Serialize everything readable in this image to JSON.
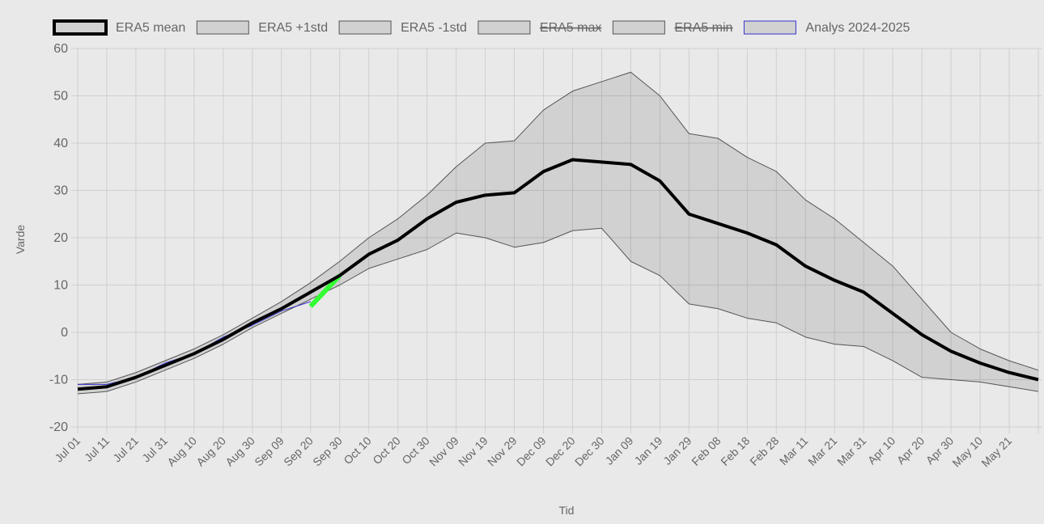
{
  "chart_data": {
    "type": "line",
    "x_label": "Tid",
    "y_label": "Varde",
    "categories": [
      "Jul 01",
      "Jul 11",
      "Jul 21",
      "Jul 31",
      "Aug 10",
      "Aug 20",
      "Aug 30",
      "Sep 09",
      "Sep 20",
      "Sep 30",
      "Oct 10",
      "Oct 20",
      "Oct 30",
      "Nov 09",
      "Nov 19",
      "Nov 29",
      "Dec 09",
      "Dec 20",
      "Dec 30",
      "Jan 09",
      "Jan 19",
      "Jan 29",
      "Feb 08",
      "Feb 18",
      "Feb 28",
      "Mar 11",
      "Mar 21",
      "Mar 31",
      "Apr 10",
      "Apr 20",
      "Apr 30",
      "May 10",
      "May 21",
      null
    ],
    "ylim": [
      -20,
      60
    ],
    "yticks": [
      -20,
      -10,
      0,
      10,
      20,
      30,
      40,
      50,
      60
    ],
    "grid": true,
    "legend": "top",
    "series": [
      {
        "name": "ERA5 mean",
        "color": "#000000",
        "width": 4,
        "values": [
          -12,
          -11.5,
          -9.5,
          -7,
          -4.5,
          -1.5,
          2,
          5,
          8.5,
          12,
          16.5,
          19.5,
          24,
          27.5,
          29,
          29.5,
          34,
          36.5,
          36,
          35.5,
          32,
          25,
          23,
          21,
          18.5,
          14,
          11,
          8.5,
          4,
          -0.5,
          -4,
          -6.5,
          -8.5,
          -10
        ]
      },
      {
        "name": "ERA5 +1std",
        "color": "#555555",
        "width": 1,
        "fill_to": 2,
        "values": [
          -11,
          -10.5,
          -8.5,
          -6,
          -3.5,
          -0.5,
          3,
          6.5,
          10.5,
          15,
          20,
          24,
          29,
          35,
          40,
          40.5,
          47,
          51,
          53,
          55,
          50,
          42,
          41,
          37,
          34,
          28,
          24,
          19,
          14,
          7,
          0,
          -3.5,
          -6,
          -8
        ]
      },
      {
        "name": "ERA5 -1std",
        "color": "#555555",
        "width": 1,
        "values": [
          -13,
          -12.5,
          -10.5,
          -8,
          -5.5,
          -2.5,
          1,
          4,
          7,
          10,
          13.5,
          15.5,
          17.5,
          21,
          20,
          18,
          19,
          21.5,
          22,
          15,
          12,
          6,
          5,
          3,
          2,
          -1,
          -2.5,
          -3,
          -6,
          -9.5,
          -10,
          -10.5,
          -11.5,
          -12.5
        ]
      },
      {
        "name": "ERA5 max",
        "color": "#555555",
        "hidden": true
      },
      {
        "name": "ERA5 min",
        "color": "#555555",
        "hidden": true
      },
      {
        "name": "Analys 2024-2025",
        "color": "#3333cc",
        "width": 1,
        "values": [
          -11,
          -11,
          -9.5,
          -6.5,
          -4.5,
          -1,
          1.5,
          4.5,
          6.5,
          null,
          null,
          null,
          null,
          null,
          null,
          null,
          null,
          null,
          null,
          null,
          null,
          null,
          null,
          null,
          null,
          null,
          null,
          null,
          null,
          null,
          null,
          null,
          null,
          null
        ]
      },
      {
        "color": "#33ff33",
        "width": 6,
        "values": [
          null,
          null,
          null,
          null,
          null,
          null,
          null,
          null,
          5.5,
          12,
          null,
          null,
          null,
          null,
          null,
          null,
          null,
          null,
          null,
          null,
          null,
          null,
          null,
          null,
          null,
          null,
          null,
          null,
          null,
          null,
          null,
          null,
          null,
          null
        ]
      }
    ]
  }
}
